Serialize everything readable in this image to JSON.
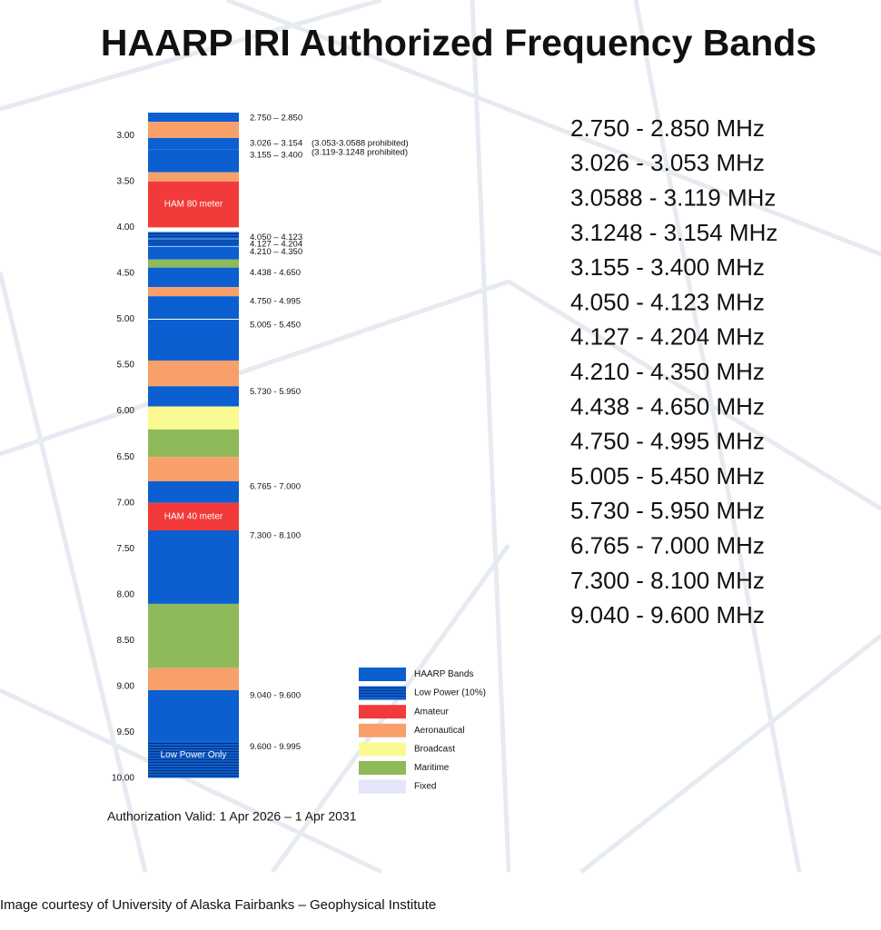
{
  "chart_data": {
    "type": "bands",
    "title": "HAARP IRI Authorized Frequency Bands",
    "ylim": [
      2.75,
      10.0
    ],
    "yticks": [
      {
        "value": 3.0,
        "label": "3.00"
      },
      {
        "value": 3.5,
        "label": "3.50"
      },
      {
        "value": 4.0,
        "label": "4.00"
      },
      {
        "value": 4.5,
        "label": "4.50"
      },
      {
        "value": 5.0,
        "label": "5.00"
      },
      {
        "value": 5.5,
        "label": "5.50"
      },
      {
        "value": 6.0,
        "label": "6.00"
      },
      {
        "value": 6.5,
        "label": "6.50"
      },
      {
        "value": 7.0,
        "label": "7.00"
      },
      {
        "value": 7.5,
        "label": "7.50"
      },
      {
        "value": 8.0,
        "label": "8.00"
      },
      {
        "value": 8.5,
        "label": "8.50"
      },
      {
        "value": 9.0,
        "label": "9.00"
      },
      {
        "value": 9.5,
        "label": "9.50"
      },
      {
        "value": 10.0,
        "label": "10.00"
      }
    ],
    "bands": [
      {
        "start": 2.75,
        "end": 2.85,
        "color": "#0b5fd0",
        "label": "2.750 – 2.850"
      },
      {
        "start": 2.85,
        "end": 3.026,
        "color": "#f9a06a"
      },
      {
        "start": 3.026,
        "end": 3.154,
        "color": "#0b5fd0",
        "label": "3.026 – 3.154",
        "notes": [
          "(3.053-3.0588 prohibited)",
          "(3.119-3.1248 prohibited)"
        ]
      },
      {
        "start": 3.155,
        "end": 3.4,
        "color": "#0b5fd0",
        "label": "3.155 – 3.400"
      },
      {
        "start": 3.4,
        "end": 3.5,
        "color": "#f9a06a"
      },
      {
        "start": 3.5,
        "end": 4.0,
        "color": "#f23a3a",
        "inner_label": "HAM 80 meter"
      },
      {
        "start": 4.05,
        "end": 4.123,
        "color": "#0b5fd0",
        "hatch": true,
        "label": "4.050 – 4.123"
      },
      {
        "start": 4.127,
        "end": 4.204,
        "color": "#0b5fd0",
        "hatch": true,
        "label": "4.127 – 4.204"
      },
      {
        "start": 4.21,
        "end": 4.35,
        "color": "#0b5fd0",
        "label": "4.210 – 4.350"
      },
      {
        "start": 4.35,
        "end": 4.438,
        "color": "#8fba5a"
      },
      {
        "start": 4.438,
        "end": 4.65,
        "color": "#0b5fd0",
        "label": "4.438 - 4.650"
      },
      {
        "start": 4.65,
        "end": 4.75,
        "color": "#f9a06a"
      },
      {
        "start": 4.75,
        "end": 4.995,
        "color": "#0b5fd0",
        "label": "4.750 - 4.995"
      },
      {
        "start": 5.005,
        "end": 5.45,
        "color": "#0b5fd0",
        "label": "5.005 - 5.450"
      },
      {
        "start": 5.45,
        "end": 5.73,
        "color": "#f9a06a"
      },
      {
        "start": 5.73,
        "end": 5.95,
        "color": "#0b5fd0",
        "label": "5.730 - 5.950"
      },
      {
        "start": 5.95,
        "end": 6.2,
        "color": "#fbfa92"
      },
      {
        "start": 6.2,
        "end": 6.5,
        "color": "#8fba5a"
      },
      {
        "start": 6.5,
        "end": 6.765,
        "color": "#f9a06a"
      },
      {
        "start": 6.765,
        "end": 7.0,
        "color": "#0b5fd0",
        "label": "6.765 - 7.000"
      },
      {
        "start": 7.0,
        "end": 7.3,
        "color": "#f23a3a",
        "inner_label": "HAM 40 meter"
      },
      {
        "start": 7.3,
        "end": 8.1,
        "color": "#0b5fd0",
        "label": "7.300 - 8.100"
      },
      {
        "start": 8.1,
        "end": 8.8,
        "color": "#8fba5a"
      },
      {
        "start": 8.8,
        "end": 9.04,
        "color": "#f9a06a"
      },
      {
        "start": 9.04,
        "end": 9.6,
        "color": "#0b5fd0",
        "label": "9.040 - 9.600"
      },
      {
        "start": 9.6,
        "end": 9.995,
        "color": "#0b5fd0",
        "hatch": true,
        "label": "9.600 - 9.995",
        "inner_label": "Low Power Only"
      }
    ],
    "legend": [
      {
        "name": "HAARP Bands",
        "color": "#0b5fd0"
      },
      {
        "name": "Low Power (10%)",
        "color": "#0b5fd0",
        "hatch": true
      },
      {
        "name": "Amateur",
        "color": "#f23a3a"
      },
      {
        "name": "Aeronautical",
        "color": "#f9a06a"
      },
      {
        "name": "Broadcast",
        "color": "#fbfa92"
      },
      {
        "name": "Maritime",
        "color": "#8fba5a"
      },
      {
        "name": "Fixed",
        "color": "#e4e4fa"
      }
    ],
    "frequency_list": [
      "2.750 - 2.850 MHz",
      "3.026 - 3.053 MHz",
      "3.0588 - 3.119 MHz",
      "3.1248 - 3.154 MHz",
      "3.155 - 3.400 MHz",
      "4.050 - 4.123 MHz",
      "4.127 - 4.204 MHz",
      "4.210 - 4.350 MHz",
      "4.438 - 4.650 MHz",
      "4.750 - 4.995 MHz",
      "5.005 - 5.450 MHz",
      "5.730 - 5.950 MHz",
      "6.765 - 7.000 MHz",
      "7.300 - 8.100 MHz",
      "9.040 - 9.600 MHz"
    ],
    "authorization": "Authorization Valid: 1 Apr 2026 – 1 Apr 2031",
    "credit": "Image courtesy of University of Alaska Fairbanks – Geophysical Institute"
  }
}
